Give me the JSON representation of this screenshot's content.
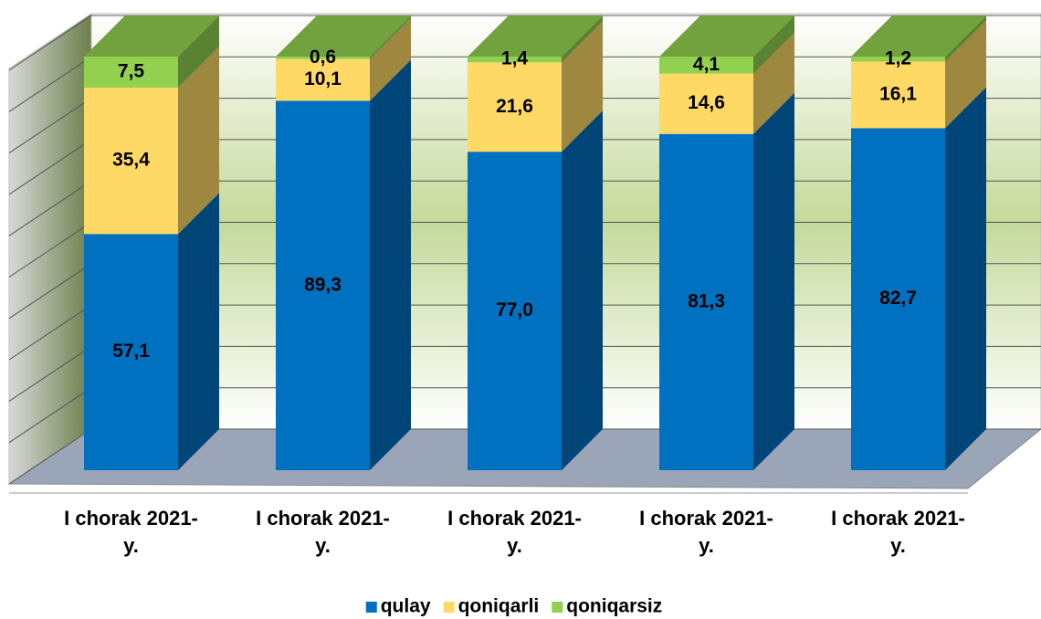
{
  "chart_data": {
    "type": "bar3d_stacked",
    "categories": [
      "I chorak 2021- y.",
      "I chorak 2021- y.",
      "I chorak 2021- y.",
      "I chorak 2021- y.",
      "I chorak 2021- y."
    ],
    "series": [
      {
        "name": "qulay",
        "color": "#0070c0",
        "values": [
          57.1,
          89.3,
          77.0,
          81.3,
          82.7
        ],
        "value_labels": [
          "57,1",
          "89,3",
          "77,0",
          "81,3",
          "82,7"
        ]
      },
      {
        "name": "qoniqarli",
        "color": "#ffd966",
        "values": [
          35.4,
          10.1,
          21.6,
          14.6,
          16.1
        ],
        "value_labels": [
          "35,4",
          "10,1",
          "21,6",
          "14,6",
          "16,1"
        ]
      },
      {
        "name": "qoniqarsiz",
        "color": "#92d050",
        "values": [
          7.5,
          0.6,
          1.4,
          4.1,
          1.2
        ],
        "value_labels": [
          "7,5",
          "0,6",
          "1,4",
          "4,1",
          "1,2"
        ]
      }
    ],
    "ylim": [
      0,
      100
    ],
    "yticks": [
      0,
      10,
      20,
      30,
      40,
      50,
      60,
      70,
      80,
      90,
      100
    ],
    "grid": true,
    "legend": "bottom"
  }
}
